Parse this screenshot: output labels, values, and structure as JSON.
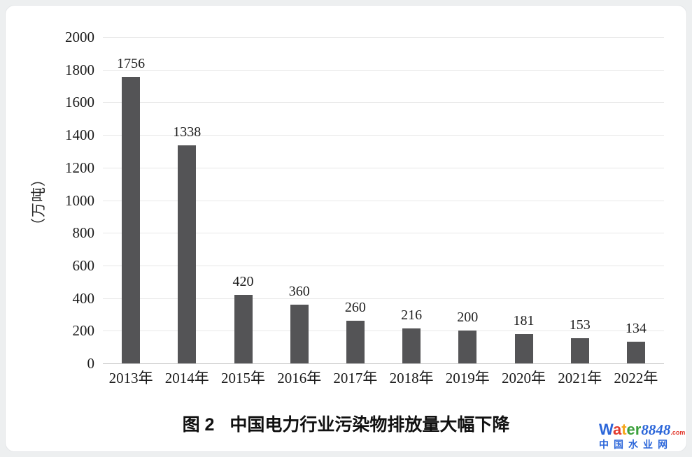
{
  "window": {
    "background": "#edeff0",
    "card_background": "#ffffff"
  },
  "chart_data": {
    "type": "bar",
    "categories": [
      "2013年",
      "2014年",
      "2015年",
      "2016年",
      "2017年",
      "2018年",
      "2019年",
      "2020年",
      "2021年",
      "2022年"
    ],
    "values": [
      1756,
      1338,
      420,
      360,
      260,
      216,
      200,
      181,
      153,
      134
    ],
    "value_labels": [
      "1756",
      "1338",
      "420",
      "360",
      "260",
      "216",
      "200",
      "181",
      "153",
      "134"
    ],
    "title": "图 2　中国电力行业污染物排放量大幅下降",
    "xlabel": "",
    "ylabel": "（万吨）",
    "ylim": [
      0,
      2000
    ],
    "ytick_step": 200,
    "yticks": [
      2000,
      1800,
      1600,
      1400,
      1200,
      1000,
      800,
      600,
      400,
      200,
      0
    ],
    "grid": true,
    "legend": false,
    "bar_color": "#545456",
    "gridline_color": "#e7e7e7",
    "baseline_color": "#c9c9c9"
  },
  "caption": {
    "figure_label": "图 2",
    "title": "中国电力行业污染物排放量大幅下降"
  },
  "watermark": {
    "brand_letters": [
      {
        "char": "W",
        "color": "#2b66d9"
      },
      {
        "char": "a",
        "color": "#e23a2e"
      },
      {
        "char": "t",
        "color": "#f6a71c"
      },
      {
        "char": "e",
        "color": "#3ba03b"
      },
      {
        "char": "r",
        "color": "#3ba03b"
      }
    ],
    "brand_number": "8848",
    "brand_number_color": "#2b66d9",
    "brand_suffix": ".com",
    "brand_suffix_color": "#e23a2e",
    "subtitle": "中国水业网",
    "subtitle_color": "#2b66d9"
  }
}
